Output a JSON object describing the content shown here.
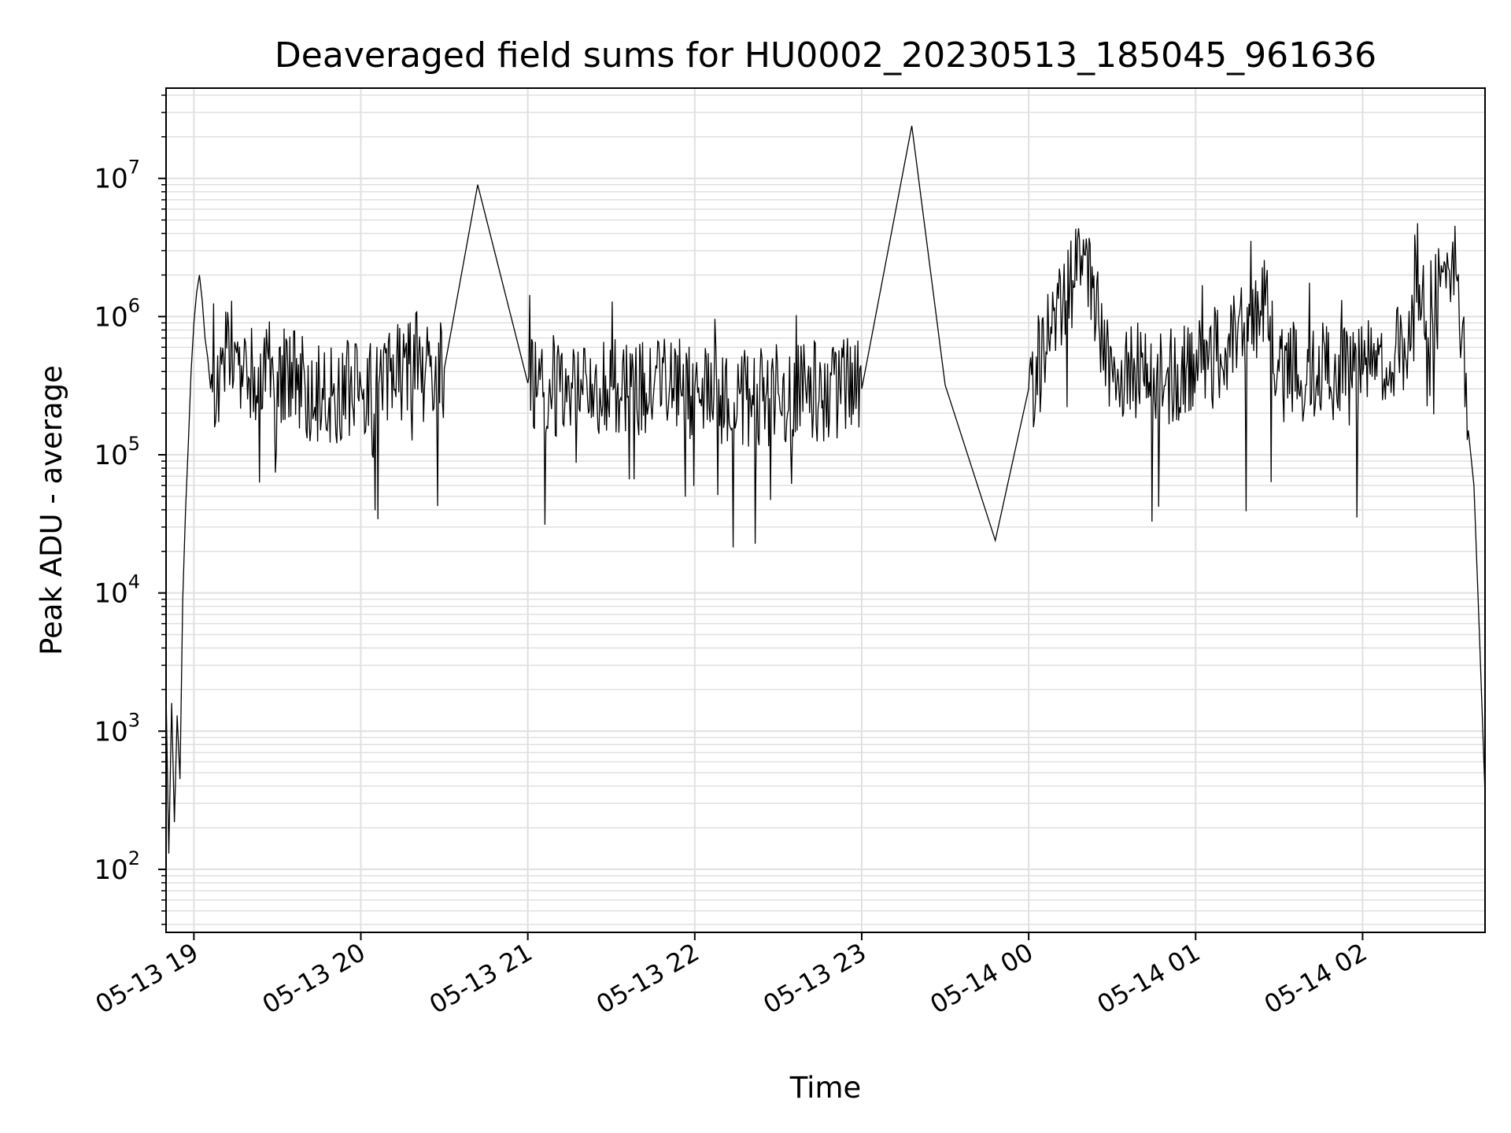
{
  "chart_data": {
    "type": "line",
    "title": "Deaveraged field sums for HU0002_20230513_185045_961636",
    "xlabel": "Time",
    "ylabel": "Peak ADU - average",
    "xscale": "time",
    "yscale": "log",
    "xlim": [
      "2023-05-13 18:50",
      "2023-05-14 02:44"
    ],
    "ylim": [
      35,
      45000000
    ],
    "grid": true,
    "legend": "none",
    "x_ticks": [
      {
        "value": "2023-05-13 19:00",
        "label": "05-13 19"
      },
      {
        "value": "2023-05-13 20:00",
        "label": "05-13 20"
      },
      {
        "value": "2023-05-13 21:00",
        "label": "05-13 21"
      },
      {
        "value": "2023-05-13 22:00",
        "label": "05-13 22"
      },
      {
        "value": "2023-05-13 23:00",
        "label": "05-13 23"
      },
      {
        "value": "2023-05-14 00:00",
        "label": "05-14 00"
      },
      {
        "value": "2023-05-14 01:00",
        "label": "05-14 01"
      },
      {
        "value": "2023-05-14 02:00",
        "label": "05-14 02"
      }
    ],
    "y_ticks": [
      {
        "value": 100,
        "base": "10",
        "exp": "2"
      },
      {
        "value": 1000,
        "base": "10",
        "exp": "3"
      },
      {
        "value": 10000,
        "base": "10",
        "exp": "4"
      },
      {
        "value": 100000,
        "base": "10",
        "exp": "5"
      },
      {
        "value": 1000000,
        "base": "10",
        "exp": "6"
      },
      {
        "value": 10000000,
        "base": "10",
        "exp": "7"
      }
    ],
    "series": [
      {
        "color": "#000000",
        "points": [
          [
            "2023-05-13 18:50",
            1900
          ],
          [
            "2023-05-13 18:51",
            130
          ],
          [
            "2023-05-13 18:52",
            1600
          ],
          [
            "2023-05-13 18:53",
            220
          ],
          [
            "2023-05-13 18:54",
            1300
          ],
          [
            "2023-05-13 18:55",
            450
          ],
          [
            "2023-05-13 18:56",
            9000
          ],
          [
            "2023-05-13 18:57",
            40000
          ],
          [
            "2023-05-13 18:58",
            120000
          ],
          [
            "2023-05-13 18:59",
            400000
          ],
          [
            "2023-05-13 19:00",
            900000
          ],
          [
            "2023-05-13 19:01",
            1500000
          ],
          [
            "2023-05-13 19:02",
            2000000
          ],
          [
            "2023-05-13 19:03",
            1300000
          ],
          [
            "2023-05-13 19:04",
            700000
          ],
          [
            "2023-05-13 19:05",
            500000
          ],
          [
            "2023-05-13 19:06",
            300000
          ],
          [
            "2023-05-13 19:10",
            450000
          ],
          [
            "2023-05-13 19:15",
            600000
          ],
          [
            "2023-05-13 19:20",
            350000
          ],
          [
            "2023-05-13 19:25",
            500000
          ],
          [
            "2023-05-13 19:30",
            400000
          ],
          [
            "2023-05-13 19:40",
            300000
          ],
          [
            "2023-05-13 19:50",
            280000
          ],
          [
            "2023-05-13 20:00",
            320000
          ],
          [
            "2023-05-13 20:15",
            380000
          ],
          [
            "2023-05-13 20:30",
            420000
          ],
          [
            "2023-05-13 20:42",
            9000000
          ],
          [
            "2023-05-13 21:00",
            330000
          ],
          [
            "2023-05-13 21:30",
            310000
          ],
          [
            "2023-05-13 22:00",
            300000
          ],
          [
            "2023-05-13 22:20",
            250000
          ],
          [
            "2023-05-13 22:30",
            280000
          ],
          [
            "2023-05-13 23:00",
            300000
          ],
          [
            "2023-05-13 23:18",
            24000000
          ],
          [
            "2023-05-13 23:30",
            320000
          ],
          [
            "2023-05-13 23:48",
            24000
          ],
          [
            "2023-05-14 00:00",
            300000
          ],
          [
            "2023-05-14 00:20",
            2800000
          ],
          [
            "2023-05-14 00:30",
            420000
          ],
          [
            "2023-05-14 01:00",
            380000
          ],
          [
            "2023-05-14 01:25",
            1200000
          ],
          [
            "2023-05-14 01:30",
            400000
          ],
          [
            "2023-05-14 02:00",
            380000
          ],
          [
            "2023-05-14 02:15",
            700000
          ],
          [
            "2023-05-14 02:30",
            1600000
          ],
          [
            "2023-05-14 02:32",
            2400000
          ],
          [
            "2023-05-14 02:34",
            1800000
          ],
          [
            "2023-05-14 02:36",
            900000
          ],
          [
            "2023-05-14 02:38",
            150000
          ],
          [
            "2023-05-14 02:40",
            60000
          ],
          [
            "2023-05-14 02:42",
            5000
          ],
          [
            "2023-05-14 02:44",
            350
          ]
        ]
      }
    ],
    "colors": {
      "line": "#000000",
      "grid": "#e0e0e0",
      "axis": "#000000"
    }
  }
}
